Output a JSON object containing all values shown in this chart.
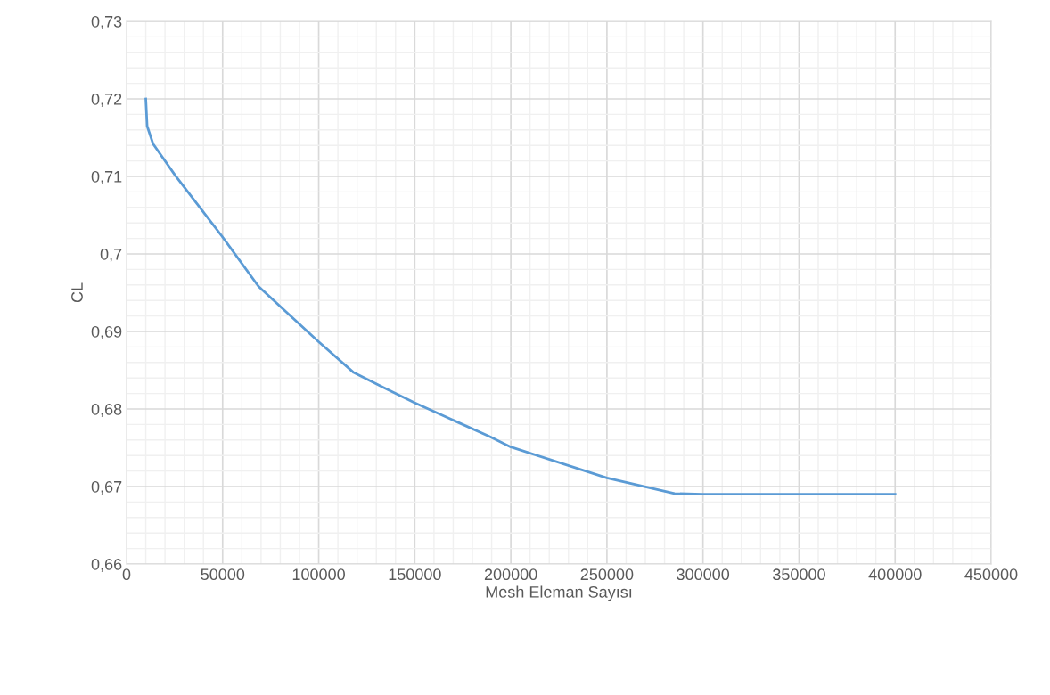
{
  "chart_data": {
    "type": "line",
    "xlabel": "Mesh Eleman Sayısı",
    "ylabel": "CL",
    "x": [
      10000,
      10700,
      13800,
      25400,
      49600,
      68700,
      99800,
      118200,
      133600,
      149900,
      189300,
      200000,
      250000,
      285200,
      300000,
      400000
    ],
    "series": [
      {
        "color": "#5b9bd5",
        "values": [
          0.72,
          0.7165,
          0.7142,
          0.7101,
          0.7023,
          0.6958,
          0.6887,
          0.6847,
          0.6828,
          0.6808,
          0.6764,
          0.6751,
          0.6711,
          0.6691,
          0.669,
          0.669
        ]
      }
    ],
    "xlim": [
      0,
      450000
    ],
    "xticks": [
      0,
      50000,
      100000,
      150000,
      200000,
      250000,
      300000,
      350000,
      400000,
      450000
    ],
    "ylim": [
      0.66,
      0.73
    ],
    "yticks": [
      {
        "value": 0.66,
        "label": "0,66"
      },
      {
        "value": 0.67,
        "label": "0,67"
      },
      {
        "value": 0.68,
        "label": "0,68"
      },
      {
        "value": 0.69,
        "label": "0,69"
      },
      {
        "value": 0.7,
        "label": "0,7"
      },
      {
        "value": 0.71,
        "label": "0,71"
      },
      {
        "value": 0.72,
        "label": "0,72"
      },
      {
        "value": 0.73,
        "label": "0,73"
      }
    ],
    "grid": true,
    "marker": "none",
    "line_style": "solid"
  }
}
